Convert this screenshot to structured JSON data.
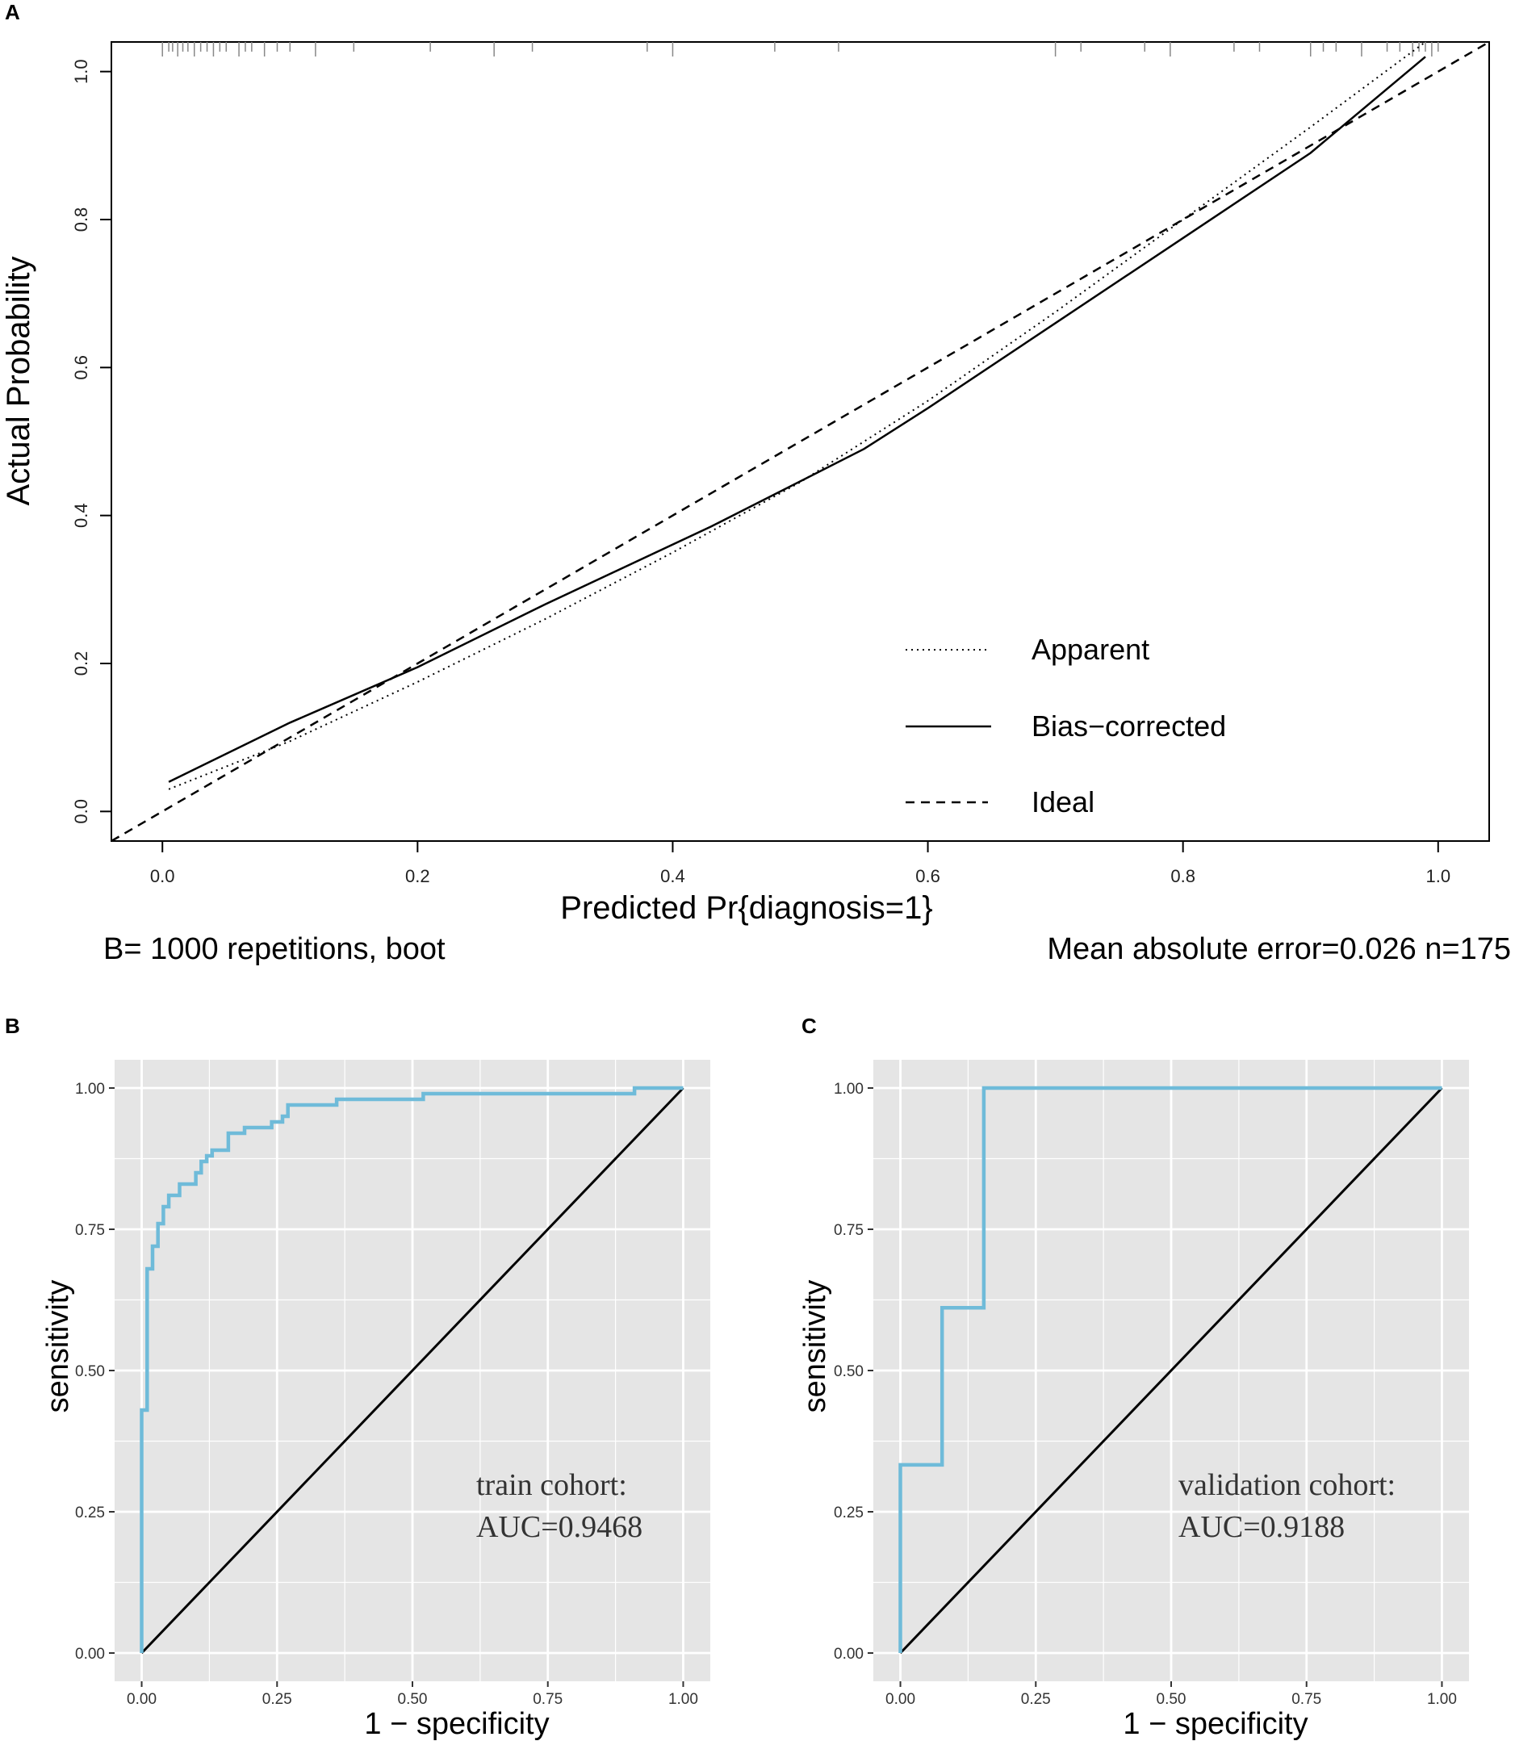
{
  "panel_labels": {
    "a": "A",
    "b": "B",
    "c": "C"
  },
  "colors": {
    "roc": "#6FBBD9",
    "panel_bg": "#E5E5E5",
    "grid": "#FFFFFF",
    "line": "#000000",
    "rug": "#888888"
  },
  "chart_data": [
    {
      "id": "A",
      "type": "line",
      "xlabel": "Predicted Pr{diagnosis=1}",
      "ylabel": "Actual Probability",
      "xlim": [
        -0.04,
        1.04
      ],
      "ylim": [
        -0.04,
        1.04
      ],
      "xticks": [
        0.0,
        0.2,
        0.4,
        0.6,
        0.8,
        1.0
      ],
      "xtick_labels": [
        "0.0",
        "0.2",
        "0.4",
        "0.6",
        "0.8",
        "1.0"
      ],
      "yticks": [
        0.0,
        0.2,
        0.4,
        0.6,
        0.8,
        1.0
      ],
      "ytick_labels": [
        "0.0",
        "0.2",
        "0.4",
        "0.6",
        "0.8",
        "1.0"
      ],
      "subtitle_left": "B= 1000 repetitions, boot",
      "subtitle_right": "Mean absolute error=0.026 n=175",
      "legend": [
        {
          "label": "Apparent",
          "style": "dotted"
        },
        {
          "label": "Bias−corrected",
          "style": "solid"
        },
        {
          "label": "Ideal",
          "style": "dashed"
        }
      ],
      "legend_position": "bottom-right",
      "series": [
        {
          "name": "Apparent",
          "style": "dotted",
          "x": [
            0.005,
            0.1,
            0.2,
            0.3,
            0.4,
            0.5,
            0.55,
            0.6,
            0.7,
            0.8,
            0.9,
            0.99
          ],
          "y": [
            0.03,
            0.095,
            0.175,
            0.26,
            0.35,
            0.445,
            0.5,
            0.555,
            0.675,
            0.8,
            0.925,
            1.04
          ]
        },
        {
          "name": "Bias-corrected",
          "style": "solid",
          "x": [
            0.005,
            0.1,
            0.2,
            0.3,
            0.43,
            0.55,
            0.6,
            0.7,
            0.8,
            0.9,
            0.99
          ],
          "y": [
            0.04,
            0.12,
            0.195,
            0.28,
            0.385,
            0.49,
            0.545,
            0.66,
            0.775,
            0.89,
            1.02
          ]
        },
        {
          "name": "Ideal",
          "style": "dashed",
          "x": [
            -0.04,
            1.04
          ],
          "y": [
            -0.04,
            1.04
          ]
        }
      ],
      "rug_x": [
        0.0,
        0.005,
        0.008,
        0.012,
        0.016,
        0.02,
        0.025,
        0.03,
        0.035,
        0.04,
        0.045,
        0.05,
        0.06,
        0.065,
        0.07,
        0.08,
        0.09,
        0.1,
        0.12,
        0.15,
        0.21,
        0.26,
        0.29,
        0.38,
        0.4,
        0.48,
        0.53,
        0.7,
        0.72,
        0.77,
        0.79,
        0.84,
        0.86,
        0.9,
        0.91,
        0.92,
        0.94,
        0.96,
        0.97,
        0.98,
        0.985,
        0.99,
        0.995,
        1.0
      ]
    },
    {
      "id": "B",
      "type": "line",
      "xlabel": "1 − specificity",
      "ylabel": "sensitivity",
      "xlim": [
        -0.05,
        1.05
      ],
      "ylim": [
        -0.05,
        1.05
      ],
      "xticks": [
        0,
        0.25,
        0.5,
        0.75,
        1.0
      ],
      "xtick_labels": [
        "0.00",
        "0.25",
        "0.50",
        "0.75",
        "1.00"
      ],
      "yticks": [
        0,
        0.25,
        0.5,
        0.75,
        1.0
      ],
      "ytick_labels": [
        "0.00",
        "0.25",
        "0.50",
        "0.75",
        "1.00"
      ],
      "annotation": [
        "train cohort:",
        "AUC=0.9468"
      ],
      "roc": {
        "x": [
          0,
          0,
          0.01,
          0.01,
          0.02,
          0.02,
          0.03,
          0.03,
          0.04,
          0.04,
          0.05,
          0.05,
          0.07,
          0.07,
          0.1,
          0.1,
          0.11,
          0.11,
          0.12,
          0.12,
          0.13,
          0.13,
          0.16,
          0.16,
          0.19,
          0.19,
          0.24,
          0.24,
          0.26,
          0.26,
          0.27,
          0.27,
          0.36,
          0.36,
          0.52,
          0.52,
          0.91,
          0.91,
          1.0
        ],
        "y": [
          0,
          0.43,
          0.43,
          0.68,
          0.68,
          0.72,
          0.72,
          0.76,
          0.76,
          0.79,
          0.79,
          0.81,
          0.81,
          0.83,
          0.83,
          0.85,
          0.85,
          0.87,
          0.87,
          0.88,
          0.88,
          0.89,
          0.89,
          0.92,
          0.92,
          0.93,
          0.93,
          0.94,
          0.94,
          0.95,
          0.95,
          0.97,
          0.97,
          0.98,
          0.98,
          0.99,
          0.99,
          1.0,
          1.0
        ]
      },
      "reference": {
        "x": [
          0,
          1
        ],
        "y": [
          0,
          1
        ]
      }
    },
    {
      "id": "C",
      "type": "line",
      "xlabel": "1 − specificity",
      "ylabel": "sensitivity",
      "xlim": [
        -0.05,
        1.05
      ],
      "ylim": [
        -0.05,
        1.05
      ],
      "xticks": [
        0,
        0.25,
        0.5,
        0.75,
        1.0
      ],
      "xtick_labels": [
        "0.00",
        "0.25",
        "0.50",
        "0.75",
        "1.00"
      ],
      "yticks": [
        0,
        0.25,
        0.5,
        0.75,
        1.0
      ],
      "ytick_labels": [
        "0.00",
        "0.25",
        "0.50",
        "0.75",
        "1.00"
      ],
      "annotation": [
        "validation cohort:",
        "AUC=0.9188"
      ],
      "roc": {
        "x": [
          0,
          0,
          0.077,
          0.077,
          0.154,
          0.154,
          1.0
        ],
        "y": [
          0,
          0.333,
          0.333,
          0.611,
          0.611,
          1.0,
          1.0
        ]
      },
      "reference": {
        "x": [
          0,
          1
        ],
        "y": [
          0,
          1
        ]
      }
    }
  ]
}
